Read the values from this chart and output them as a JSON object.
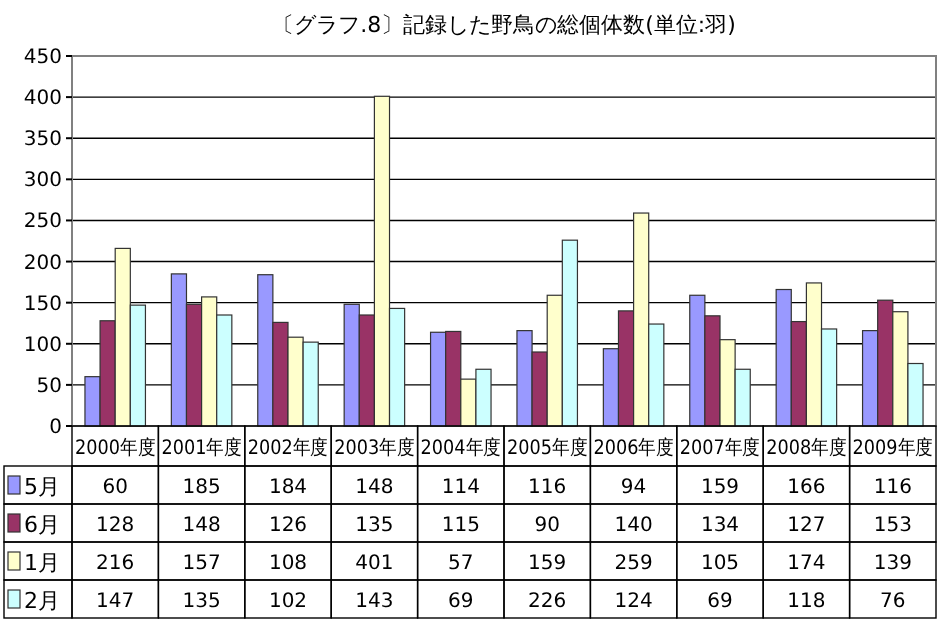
{
  "chart_data": {
    "type": "bar",
    "title": "〔グラフ.8〕記録した野鳥の総個体数(単位:羽)",
    "categories": [
      "2000年度",
      "2001年度",
      "2002年度",
      "2003年度",
      "2004年度",
      "2005年度",
      "2006年度",
      "2007年度",
      "2008年度",
      "2009年度"
    ],
    "series": [
      {
        "name": "5月",
        "color": "#9999ff",
        "values": [
          60,
          185,
          184,
          148,
          114,
          116,
          94,
          159,
          166,
          116
        ]
      },
      {
        "name": "6月",
        "color": "#993366",
        "values": [
          128,
          148,
          126,
          135,
          115,
          90,
          140,
          134,
          127,
          153
        ]
      },
      {
        "name": "1月",
        "color": "#ffffcc",
        "values": [
          216,
          157,
          108,
          401,
          57,
          159,
          259,
          105,
          174,
          139
        ]
      },
      {
        "name": "2月",
        "color": "#ccffff",
        "values": [
          147,
          135,
          102,
          143,
          69,
          226,
          124,
          69,
          118,
          76
        ]
      }
    ],
    "ylim": [
      0,
      450
    ],
    "yticks": [
      0,
      50,
      100,
      150,
      200,
      250,
      300,
      350,
      400,
      450
    ],
    "grid": "y",
    "legend": "bottom",
    "data_labels": true
  }
}
